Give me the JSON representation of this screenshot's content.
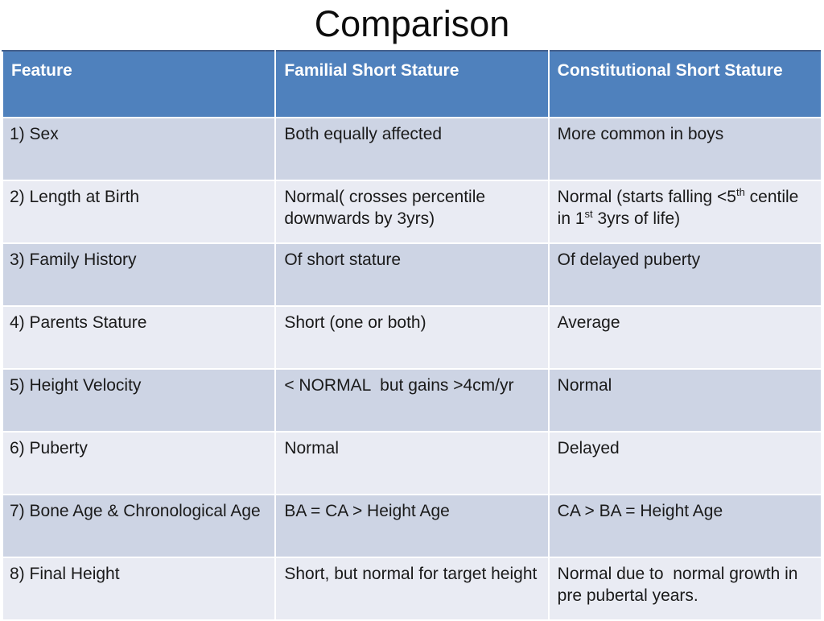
{
  "slide": {
    "title": "Comparison"
  },
  "colors": {
    "header_bg": "#4f81bd",
    "header_text": "#ffffff",
    "header_top_edge": "#44608c",
    "band_dark": "#cdd4e4",
    "band_light": "#e9ebf3",
    "cell_border": "#ffffff",
    "body_text": "#1a1a1a"
  },
  "table": {
    "headers": [
      "Feature",
      "Familial Short Stature",
      "Constitutional Short Stature"
    ],
    "rows": [
      {
        "feature": "1) Sex",
        "familial": "Both equally affected",
        "constitutional": "More common in boys"
      },
      {
        "feature": "2) Length at Birth",
        "familial": "Normal( crosses percentile downwards by 3yrs)",
        "constitutional_rich": {
          "pre": "Normal (starts falling <5",
          "sup1": "th",
          "mid": " centile in 1",
          "sup2": "st",
          "post": " 3yrs of life)"
        }
      },
      {
        "feature": "3) Family History",
        "familial": "Of short stature",
        "constitutional": "Of delayed puberty"
      },
      {
        "feature": "4) Parents Stature",
        "familial": "Short (one or both)",
        "constitutional": "Average"
      },
      {
        "feature": "5) Height Velocity",
        "familial": "< NORMAL  but gains >4cm/yr",
        "constitutional": "Normal"
      },
      {
        "feature": "6) Puberty",
        "familial": "Normal",
        "constitutional": "Delayed"
      },
      {
        "feature": "7) Bone Age & Chronological Age",
        "familial": "BA = CA > Height Age",
        "constitutional": "CA > BA = Height Age"
      },
      {
        "feature": "8) Final Height",
        "familial": "Short, but normal for target height",
        "constitutional": "Normal due to  normal growth in pre pubertal years."
      }
    ]
  }
}
